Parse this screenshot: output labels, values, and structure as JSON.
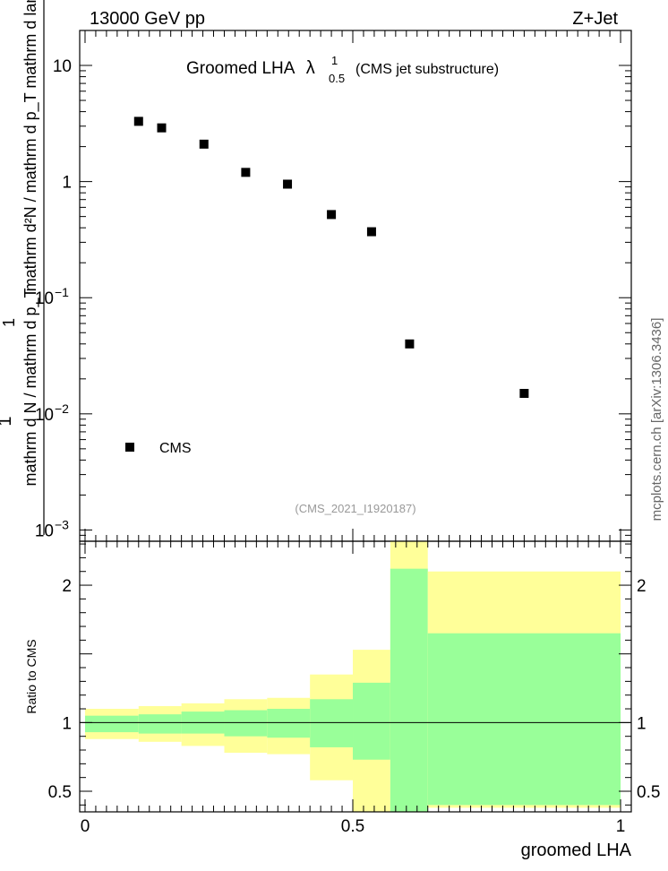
{
  "header": {
    "left": "13000 GeV pp",
    "right": "Z+Jet"
  },
  "watermark": "mcplots.cern.ch [arXiv:1306.3436]",
  "colors": {
    "data_marker": "#000000",
    "band_outer": "#ffff99",
    "band_inner": "#99ff99",
    "analysis_id": "#999999"
  },
  "chart_data": [
    {
      "type": "scatter",
      "title_main": "Groomed LHA",
      "title_symbol": "λ",
      "title_sup": "1",
      "title_sub": "0.5",
      "title_suffix": "(CMS jet substructure)",
      "ylabel_numerator": "mathrm d^2N",
      "ylabel_num_sub": "T",
      "ylabel_num_rest": "mathrm d p_T mathrm d lambda",
      "ylabel_numerator_text": "mathrm d²N / mathrm d p_T mathrm d lambda",
      "ylabel_prefix": "1",
      "ylabel_denominator": "mathrm d N / mathrm d p_T",
      "yscale": "log",
      "ylim": [
        0.0008,
        20
      ],
      "xlim": [
        -0.01,
        1.02
      ],
      "analysis_id": "(CMS_2021_I1920187)",
      "yticks": [
        {
          "value": 0.001,
          "base": "10",
          "exp": "−3"
        },
        {
          "value": 0.01,
          "base": "10",
          "exp": "−2"
        },
        {
          "value": 0.1,
          "base": "10",
          "exp": "−1"
        },
        {
          "value": 1,
          "base": "1",
          "exp": ""
        },
        {
          "value": 10,
          "base": "10",
          "exp": ""
        }
      ],
      "legend": {
        "position": "bottom-left",
        "label": "CMS"
      },
      "series": [
        {
          "name": "CMS",
          "x": [
            0.1,
            0.143,
            0.222,
            0.3,
            0.378,
            0.46,
            0.535,
            0.606,
            0.82
          ],
          "y": [
            3.3,
            2.9,
            2.1,
            1.2,
            0.95,
            0.52,
            0.37,
            0.04,
            0.015
          ]
        }
      ]
    },
    {
      "type": "area",
      "ylabel": "Ratio to CMS",
      "xlabel": "groomed LHA",
      "xlim": [
        -0.01,
        1.02
      ],
      "ylim": [
        0.35,
        2.32
      ],
      "xticks": [
        {
          "value": 0,
          "label": "0"
        },
        {
          "value": 0.5,
          "label": "0.5"
        },
        {
          "value": 1,
          "label": "1"
        }
      ],
      "yticks": [
        {
          "value": 0.5,
          "label": "0.5"
        },
        {
          "value": 1,
          "label": "1"
        },
        {
          "value": 2,
          "label": "2"
        }
      ],
      "reference_line": 1,
      "bins": [
        {
          "x0": 0.0,
          "x1": 0.1,
          "outer": [
            0.88,
            1.1
          ],
          "inner": [
            0.93,
            1.05
          ]
        },
        {
          "x0": 0.1,
          "x1": 0.18,
          "outer": [
            0.86,
            1.12
          ],
          "inner": [
            0.92,
            1.06
          ]
        },
        {
          "x0": 0.18,
          "x1": 0.26,
          "outer": [
            0.83,
            1.14
          ],
          "inner": [
            0.92,
            1.08
          ]
        },
        {
          "x0": 0.26,
          "x1": 0.34,
          "outer": [
            0.78,
            1.17
          ],
          "inner": [
            0.9,
            1.09
          ]
        },
        {
          "x0": 0.34,
          "x1": 0.42,
          "outer": [
            0.77,
            1.18
          ],
          "inner": [
            0.89,
            1.1
          ]
        },
        {
          "x0": 0.42,
          "x1": 0.5,
          "outer": [
            0.58,
            1.35
          ],
          "inner": [
            0.82,
            1.17
          ]
        },
        {
          "x0": 0.5,
          "x1": 0.57,
          "outer": [
            0.35,
            1.53
          ],
          "inner": [
            0.73,
            1.29
          ]
        },
        {
          "x0": 0.57,
          "x1": 0.64,
          "outer": [
            0.35,
            2.32
          ],
          "inner": [
            0.35,
            2.12
          ]
        },
        {
          "x0": 0.64,
          "x1": 1.0,
          "outer": [
            0.38,
            2.1
          ],
          "inner": [
            0.4,
            1.65
          ]
        }
      ]
    }
  ]
}
